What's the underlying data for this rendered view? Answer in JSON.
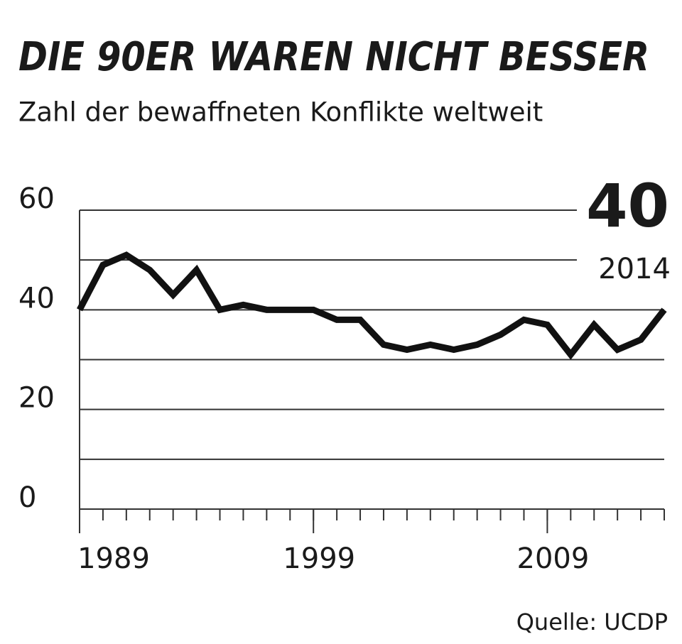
{
  "chart_data": {
    "type": "line",
    "title": "DIE 90ER WAREN NICHT BESSER",
    "subtitle": "Zahl der bewaffneten Konflikte weltweit",
    "source": "Quelle: UCDP",
    "highlight": {
      "value": "40",
      "label": "2014"
    },
    "x": [
      1989,
      1990,
      1991,
      1992,
      1993,
      1994,
      1995,
      1996,
      1997,
      1998,
      1999,
      2000,
      2001,
      2002,
      2003,
      2004,
      2005,
      2006,
      2007,
      2008,
      2009,
      2010,
      2011,
      2012,
      2013,
      2014
    ],
    "series": [
      {
        "color": "#111111",
        "values": [
          40,
          49,
          51,
          48,
          43,
          48,
          40,
          41,
          40,
          40,
          40,
          38,
          38,
          33,
          32,
          33,
          32,
          33,
          35,
          38,
          37,
          31,
          37,
          32,
          34,
          40
        ]
      }
    ],
    "xlim": [
      1989,
      2014
    ],
    "xticks": [
      1989,
      1999,
      2009
    ],
    "xminorticks": [
      1989,
      1990,
      1991,
      1992,
      1993,
      1994,
      1995,
      1996,
      1997,
      1998,
      1999,
      2000,
      2001,
      2002,
      2003,
      2004,
      2005,
      2006,
      2007,
      2008,
      2009,
      2010,
      2011,
      2012,
      2013,
      2014
    ],
    "ylim": [
      0,
      60
    ],
    "yticks": [
      0,
      20,
      40,
      60
    ],
    "ygrid": [
      0,
      10,
      20,
      30,
      40,
      50,
      60
    ],
    "grid": true
  }
}
